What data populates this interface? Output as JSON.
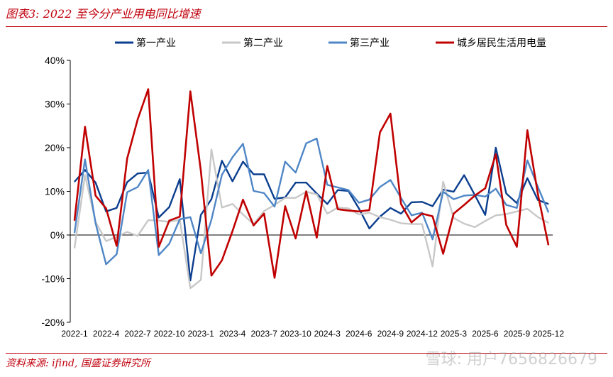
{
  "header": {
    "title": "图表3:  2022 至今分产业用电同比增速"
  },
  "footer": {
    "source": "资料来源:  ifind, 国盛证券研究所",
    "watermark": "雪球: 用户7656826679"
  },
  "chart_data": {
    "type": "line",
    "ylim": [
      -20,
      40
    ],
    "yticks": [
      -20,
      -10,
      0,
      10,
      20,
      30,
      40
    ],
    "ytick_labels": [
      "-20%",
      "-10%",
      "0%",
      "10%",
      "20%",
      "30%",
      "40%"
    ],
    "xtick_labels": [
      "2022-1",
      "2022-4",
      "2022-7",
      "2022-10",
      "2023-1",
      "2023-4",
      "2023-7",
      "2023-10",
      "2024-3",
      "2024-6",
      "2024-9",
      "2024-12",
      "2025-3",
      "2025-6",
      "2025-9",
      "2025-12"
    ],
    "legend_position": "top",
    "colors": {
      "axis": "#000000"
    },
    "series": [
      {
        "name": "第一产业",
        "color": "#0b3e8e",
        "values": [
          12.2,
          14.9,
          12,
          5.4,
          6.2,
          12.1,
          14.1,
          14.3,
          4,
          6.4,
          12.8,
          -10.4,
          4.6,
          8.2,
          17,
          12.3,
          16.8,
          13.9,
          13.9,
          8.3,
          8.6,
          12,
          12,
          9.5,
          7.1,
          10.3,
          10.1,
          6.1,
          1.5,
          4.2,
          6.2,
          4.9,
          7.5,
          7.6,
          6.6,
          10.4,
          9.9,
          13.7,
          9.2,
          4.6,
          20,
          9.5,
          7.3,
          13,
          8,
          7.1
        ]
      },
      {
        "name": "第二产业",
        "color": "#c8c8c8",
        "values": [
          -3,
          13.7,
          3,
          -1.4,
          -0.4,
          0.7,
          -0.2,
          3.4,
          3.3,
          3,
          3.5,
          -12.2,
          -10.3,
          19.6,
          6.3,
          7.1,
          4.7,
          2.5,
          5.5,
          6.9,
          8.5,
          8.5,
          9.9,
          9.3,
          4.9,
          6.3,
          6.1,
          4.7,
          5.1,
          4.1,
          3.5,
          2.7,
          2.5,
          2.5,
          -7.2,
          12.2,
          3.9,
          2.6,
          1.8,
          3.2,
          4.5,
          4.8,
          5.4,
          6,
          4.1,
          2.8
        ]
      },
      {
        "name": "第三产业",
        "color": "#4f86c6",
        "values": [
          0.5,
          17.3,
          2.7,
          -6.7,
          -4.4,
          9.8,
          11,
          14.9,
          -4.6,
          -2,
          3.6,
          4.1,
          -4.2,
          3.5,
          13.8,
          17.8,
          20.9,
          10.1,
          9.6,
          6.5,
          16.8,
          14.3,
          21,
          22.1,
          11.5,
          10.9,
          10.3,
          7.4,
          8.1,
          11,
          12.6,
          8.5,
          4.5,
          5.1,
          -1,
          9.9,
          8.2,
          9,
          9.2,
          8.8,
          10.6,
          6.9,
          6.2,
          17.1,
          11,
          5.2
        ]
      },
      {
        "name": "城乡居民生活用电量",
        "color": "#c00000",
        "values": [
          3.3,
          24.8,
          9,
          6.1,
          -2.5,
          17.5,
          26.5,
          33.4,
          -2.7,
          3.3,
          4.2,
          32.9,
          14.7,
          -9.3,
          -5.8,
          0.9,
          8.1,
          2.2,
          4.9,
          -9.8,
          6.6,
          -0.8,
          10,
          -0.6,
          15.8,
          5.9,
          5.6,
          5.4,
          5.7,
          23.5,
          27.8,
          7.1,
          2.9,
          4.9,
          4.3,
          -4.3,
          4.9,
          6.9,
          9,
          10.7,
          18.5,
          2.3,
          -2.7,
          24,
          9.3,
          -2.3
        ]
      }
    ]
  }
}
